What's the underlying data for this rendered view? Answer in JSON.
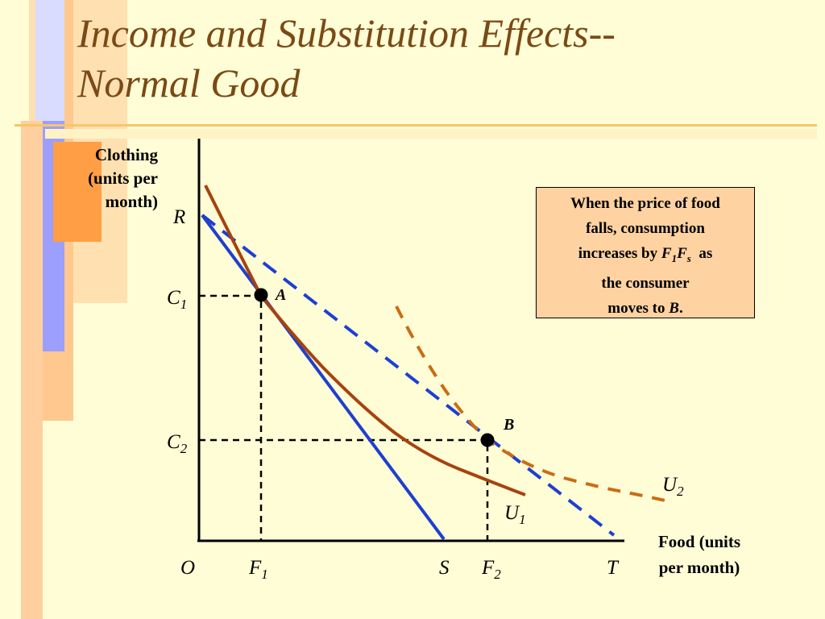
{
  "title": {
    "line1": "Income and Substitution Effects--",
    "line2": "Normal Good"
  },
  "y_axis_title": {
    "line1": "Clothing",
    "line2": "(units per",
    "line3": "month)"
  },
  "x_axis_title": {
    "line1": "Food (units",
    "line2": "per month)"
  },
  "note": {
    "line1": "When the price of food",
    "line2": "falls, consumption",
    "line3_prefix": "increases by ",
    "f1_base": "F",
    "f1_sub": "1",
    "fs_base": "F",
    "fs_sub": "s",
    "line3_suffix": "  as",
    "line4": "the consumer",
    "line5_prefix": "moves to ",
    "line5_point": "B",
    "line5_suffix": "."
  },
  "labels": {
    "origin": "O",
    "R": "R",
    "S": "S",
    "T": "T",
    "C1": {
      "base": "C",
      "sub": "1"
    },
    "C2": {
      "base": "C",
      "sub": "2"
    },
    "F1": {
      "base": "F",
      "sub": "1"
    },
    "F2": {
      "base": "F",
      "sub": "2"
    },
    "U1": {
      "base": "U",
      "sub": "1"
    },
    "U2": {
      "base": "U",
      "sub": "2"
    },
    "point_A": "A",
    "point_B": "B"
  },
  "colors": {
    "background": "#fffdd6",
    "title": "#7a4a16",
    "budget_lines": "#1f3fd0",
    "indifference_u1": "#a8420e",
    "indifference_u2": "#cc6c14",
    "note_fill": "#ffd2a2"
  }
}
